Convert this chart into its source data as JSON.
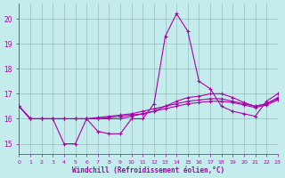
{
  "xlabel": "Windchill (Refroidissement éolien,°C)",
  "background_color": "#c5ecec",
  "grid_color": "#9abcbc",
  "line_color": "#aa00aa",
  "xlim": [
    0,
    23
  ],
  "ylim": [
    14.6,
    20.6
  ],
  "yticks": [
    15,
    16,
    17,
    18,
    19,
    20
  ],
  "xticks": [
    0,
    1,
    2,
    3,
    4,
    5,
    6,
    7,
    8,
    9,
    10,
    11,
    12,
    13,
    14,
    15,
    16,
    17,
    18,
    19,
    20,
    21,
    22,
    23
  ],
  "series": [
    [
      16.5,
      16.0,
      16.0,
      16.0,
      15.0,
      15.0,
      16.0,
      15.5,
      15.4,
      15.4,
      16.0,
      16.0,
      16.6,
      19.3,
      20.2,
      19.5,
      17.5,
      17.2,
      16.5,
      16.3,
      16.2,
      16.1,
      16.7,
      17.0
    ],
    [
      16.5,
      16.0,
      16.0,
      16.0,
      16.0,
      16.0,
      16.0,
      16.0,
      16.0,
      16.0,
      16.1,
      16.2,
      16.3,
      16.5,
      16.7,
      16.85,
      16.9,
      17.0,
      17.0,
      16.85,
      16.65,
      16.5,
      16.6,
      16.85
    ],
    [
      16.5,
      16.0,
      16.0,
      16.0,
      16.0,
      16.0,
      16.0,
      16.05,
      16.1,
      16.15,
      16.2,
      16.3,
      16.4,
      16.5,
      16.6,
      16.7,
      16.75,
      16.8,
      16.8,
      16.7,
      16.6,
      16.5,
      16.6,
      16.8
    ],
    [
      16.5,
      16.0,
      16.0,
      16.0,
      16.0,
      16.0,
      16.0,
      16.0,
      16.05,
      16.1,
      16.15,
      16.2,
      16.3,
      16.4,
      16.5,
      16.6,
      16.65,
      16.7,
      16.7,
      16.65,
      16.55,
      16.45,
      16.55,
      16.75
    ]
  ]
}
